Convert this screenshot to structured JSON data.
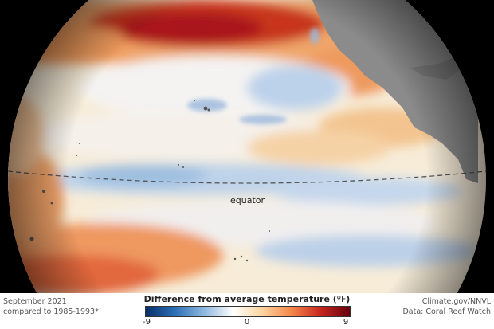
{
  "map": {
    "equator_label": "equator"
  },
  "footer": {
    "date_line1": "September 2021",
    "date_line2": "compared to 1985-1993*",
    "credit_line1": "Climate.gov/NNVL",
    "credit_line2": "Data: Coral Reef Watch"
  },
  "legend": {
    "title_main": "Difference from average temperature (",
    "title_unit": "ºF",
    "title_end": ")",
    "tick_min": "-9",
    "tick_mid": "0",
    "tick_max": "9",
    "colors": [
      "#08306b",
      "#2c6fb5",
      "#8fb8de",
      "#ffffff",
      "#fdd49e",
      "#f4874a",
      "#c7271f",
      "#67000d"
    ]
  }
}
